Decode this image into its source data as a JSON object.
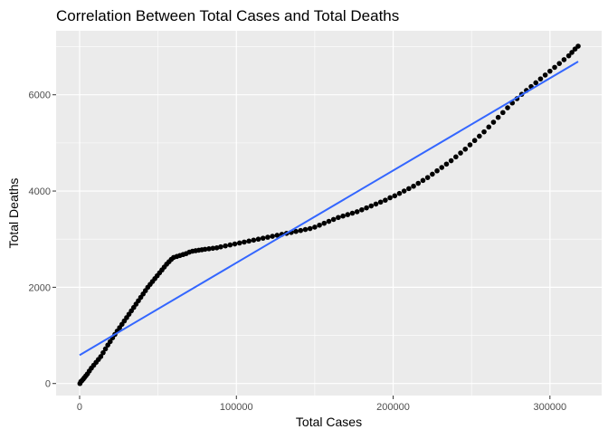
{
  "chart_data": {
    "type": "scatter",
    "title": "Correlation Between Total Cases and Total Deaths",
    "xlabel": "Total Cases",
    "ylabel": "Total Deaths",
    "xlim": [
      -15000,
      333000
    ],
    "ylim": [
      -250,
      7330
    ],
    "x_ticks": [
      0,
      100000,
      200000,
      300000
    ],
    "x_tick_labels": [
      "0",
      "100000",
      "200000",
      "300000"
    ],
    "y_ticks": [
      0,
      2000,
      4000,
      6000
    ],
    "y_tick_labels": [
      "0",
      "2000",
      "4000",
      "6000"
    ],
    "grid": true,
    "legend": "none",
    "colors": {
      "panel": "#ebebeb",
      "grid": "#ffffff",
      "points": "#000000",
      "fit_line": "#3366ff"
    },
    "points": [
      {
        "x": 200,
        "y": 0
      },
      {
        "x": 800,
        "y": 40
      },
      {
        "x": 1500,
        "y": 60
      },
      {
        "x": 2300,
        "y": 90
      },
      {
        "x": 3000,
        "y": 120
      },
      {
        "x": 4000,
        "y": 160
      },
      {
        "x": 5000,
        "y": 200
      },
      {
        "x": 6200,
        "y": 260
      },
      {
        "x": 7500,
        "y": 320
      },
      {
        "x": 9000,
        "y": 380
      },
      {
        "x": 10500,
        "y": 440
      },
      {
        "x": 12000,
        "y": 500
      },
      {
        "x": 13500,
        "y": 560
      },
      {
        "x": 15000,
        "y": 640
      },
      {
        "x": 16500,
        "y": 720
      },
      {
        "x": 18000,
        "y": 800
      },
      {
        "x": 19500,
        "y": 870
      },
      {
        "x": 21000,
        "y": 950
      },
      {
        "x": 22500,
        "y": 1020
      },
      {
        "x": 24000,
        "y": 1090
      },
      {
        "x": 25500,
        "y": 1160
      },
      {
        "x": 27000,
        "y": 1230
      },
      {
        "x": 28500,
        "y": 1300
      },
      {
        "x": 30000,
        "y": 1370
      },
      {
        "x": 31500,
        "y": 1440
      },
      {
        "x": 33000,
        "y": 1510
      },
      {
        "x": 34500,
        "y": 1580
      },
      {
        "x": 36000,
        "y": 1650
      },
      {
        "x": 37500,
        "y": 1720
      },
      {
        "x": 39000,
        "y": 1790
      },
      {
        "x": 40500,
        "y": 1860
      },
      {
        "x": 42000,
        "y": 1930
      },
      {
        "x": 43500,
        "y": 2000
      },
      {
        "x": 45000,
        "y": 2060
      },
      {
        "x": 46500,
        "y": 2120
      },
      {
        "x": 48000,
        "y": 2180
      },
      {
        "x": 49500,
        "y": 2240
      },
      {
        "x": 51000,
        "y": 2300
      },
      {
        "x": 52500,
        "y": 2360
      },
      {
        "x": 54000,
        "y": 2420
      },
      {
        "x": 55500,
        "y": 2480
      },
      {
        "x": 57000,
        "y": 2530
      },
      {
        "x": 58500,
        "y": 2580
      },
      {
        "x": 60000,
        "y": 2620
      },
      {
        "x": 62000,
        "y": 2640
      },
      {
        "x": 64000,
        "y": 2660
      },
      {
        "x": 66000,
        "y": 2680
      },
      {
        "x": 68000,
        "y": 2700
      },
      {
        "x": 70000,
        "y": 2730
      },
      {
        "x": 72000,
        "y": 2750
      },
      {
        "x": 74000,
        "y": 2760
      },
      {
        "x": 76000,
        "y": 2770
      },
      {
        "x": 78000,
        "y": 2780
      },
      {
        "x": 80000,
        "y": 2790
      },
      {
        "x": 82500,
        "y": 2800
      },
      {
        "x": 85000,
        "y": 2810
      },
      {
        "x": 87500,
        "y": 2820
      },
      {
        "x": 90000,
        "y": 2840
      },
      {
        "x": 93000,
        "y": 2860
      },
      {
        "x": 96000,
        "y": 2880
      },
      {
        "x": 99000,
        "y": 2900
      },
      {
        "x": 102000,
        "y": 2920
      },
      {
        "x": 105000,
        "y": 2940
      },
      {
        "x": 108000,
        "y": 2960
      },
      {
        "x": 111000,
        "y": 2980
      },
      {
        "x": 114000,
        "y": 3000
      },
      {
        "x": 117000,
        "y": 3020
      },
      {
        "x": 120000,
        "y": 3040
      },
      {
        "x": 123000,
        "y": 3060
      },
      {
        "x": 126000,
        "y": 3080
      },
      {
        "x": 129000,
        "y": 3100
      },
      {
        "x": 132000,
        "y": 3120
      },
      {
        "x": 135000,
        "y": 3140
      },
      {
        "x": 138000,
        "y": 3160
      },
      {
        "x": 141000,
        "y": 3180
      },
      {
        "x": 144000,
        "y": 3200
      },
      {
        "x": 147000,
        "y": 3220
      },
      {
        "x": 150000,
        "y": 3250
      },
      {
        "x": 153000,
        "y": 3290
      },
      {
        "x": 156000,
        "y": 3330
      },
      {
        "x": 159000,
        "y": 3370
      },
      {
        "x": 162000,
        "y": 3410
      },
      {
        "x": 165000,
        "y": 3450
      },
      {
        "x": 168000,
        "y": 3480
      },
      {
        "x": 171000,
        "y": 3510
      },
      {
        "x": 174000,
        "y": 3540
      },
      {
        "x": 177000,
        "y": 3570
      },
      {
        "x": 180000,
        "y": 3610
      },
      {
        "x": 183000,
        "y": 3650
      },
      {
        "x": 186000,
        "y": 3690
      },
      {
        "x": 189000,
        "y": 3730
      },
      {
        "x": 192000,
        "y": 3770
      },
      {
        "x": 195000,
        "y": 3810
      },
      {
        "x": 198000,
        "y": 3860
      },
      {
        "x": 201000,
        "y": 3900
      },
      {
        "x": 204000,
        "y": 3950
      },
      {
        "x": 207000,
        "y": 4000
      },
      {
        "x": 210000,
        "y": 4050
      },
      {
        "x": 213000,
        "y": 4100
      },
      {
        "x": 216000,
        "y": 4160
      },
      {
        "x": 219000,
        "y": 4220
      },
      {
        "x": 222000,
        "y": 4280
      },
      {
        "x": 225000,
        "y": 4350
      },
      {
        "x": 228000,
        "y": 4420
      },
      {
        "x": 231000,
        "y": 4490
      },
      {
        "x": 234000,
        "y": 4560
      },
      {
        "x": 237000,
        "y": 4630
      },
      {
        "x": 240000,
        "y": 4710
      },
      {
        "x": 243000,
        "y": 4790
      },
      {
        "x": 246000,
        "y": 4870
      },
      {
        "x": 249000,
        "y": 4960
      },
      {
        "x": 252000,
        "y": 5050
      },
      {
        "x": 255000,
        "y": 5140
      },
      {
        "x": 258000,
        "y": 5230
      },
      {
        "x": 261000,
        "y": 5330
      },
      {
        "x": 264000,
        "y": 5430
      },
      {
        "x": 267000,
        "y": 5530
      },
      {
        "x": 270000,
        "y": 5630
      },
      {
        "x": 273000,
        "y": 5730
      },
      {
        "x": 276000,
        "y": 5830
      },
      {
        "x": 279000,
        "y": 5920
      },
      {
        "x": 282000,
        "y": 6010
      },
      {
        "x": 285000,
        "y": 6090
      },
      {
        "x": 288000,
        "y": 6170
      },
      {
        "x": 291000,
        "y": 6250
      },
      {
        "x": 294000,
        "y": 6330
      },
      {
        "x": 297000,
        "y": 6410
      },
      {
        "x": 300000,
        "y": 6490
      },
      {
        "x": 303000,
        "y": 6570
      },
      {
        "x": 306000,
        "y": 6650
      },
      {
        "x": 309000,
        "y": 6730
      },
      {
        "x": 312000,
        "y": 6810
      },
      {
        "x": 314000,
        "y": 6880
      },
      {
        "x": 316000,
        "y": 6950
      },
      {
        "x": 318000,
        "y": 7010
      }
    ],
    "fit_line": {
      "method": "linear",
      "x": [
        0,
        318000
      ],
      "y": [
        590,
        6690
      ]
    }
  }
}
